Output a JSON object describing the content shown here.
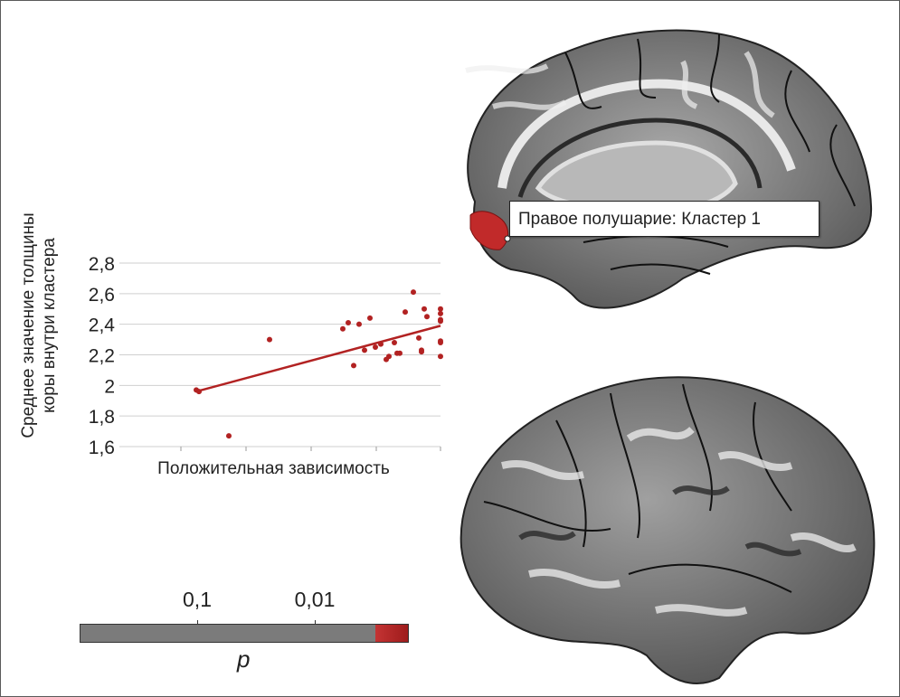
{
  "scatter": {
    "ylabel_line1": "Среднее значение толщины",
    "ylabel_line2": "коры внутри кластера",
    "xlabel": "Положительная зависимость"
  },
  "chart_data": {
    "type": "scatter",
    "ylim": [
      1.6,
      2.8
    ],
    "yticks": [
      "1,6",
      "1,8",
      "2",
      "2,2",
      "2,4",
      "2,6",
      "2,8"
    ],
    "ytick_values": [
      1.6,
      1.8,
      2.0,
      2.2,
      2.4,
      2.6,
      2.8
    ],
    "xlim": [
      0,
      10
    ],
    "grid": true,
    "point_color": "#b22222",
    "x": [
      1.0,
      1.1,
      2.2,
      3.7,
      6.4,
      6.6,
      6.8,
      7.0,
      7.2,
      7.4,
      7.6,
      7.8,
      8.0,
      8.1,
      8.3,
      8.4,
      8.5,
      8.7,
      9.0,
      9.2,
      9.3,
      9.3,
      9.4,
      9.5,
      10.0,
      10.0,
      10.0,
      10.0,
      10.0,
      10.0,
      10.0
    ],
    "y": [
      1.97,
      1.96,
      1.67,
      2.3,
      2.37,
      2.41,
      2.13,
      2.4,
      2.23,
      2.44,
      2.25,
      2.27,
      2.17,
      2.19,
      2.28,
      2.21,
      2.21,
      2.48,
      2.61,
      2.31,
      2.23,
      2.22,
      2.5,
      2.45,
      2.5,
      2.47,
      2.43,
      2.42,
      2.29,
      2.28,
      2.19
    ],
    "trend": {
      "x": [
        1.0,
        10.0
      ],
      "y": [
        1.96,
        2.39
      ]
    }
  },
  "callout": {
    "text": "Правое полушарие: Кластер 1"
  },
  "pscale": {
    "ticks": [
      "0,1",
      "0,01"
    ],
    "label": "p",
    "bar_color": "#7b7b7b",
    "significant_color": "#b22222",
    "significant_fraction": 0.1
  }
}
